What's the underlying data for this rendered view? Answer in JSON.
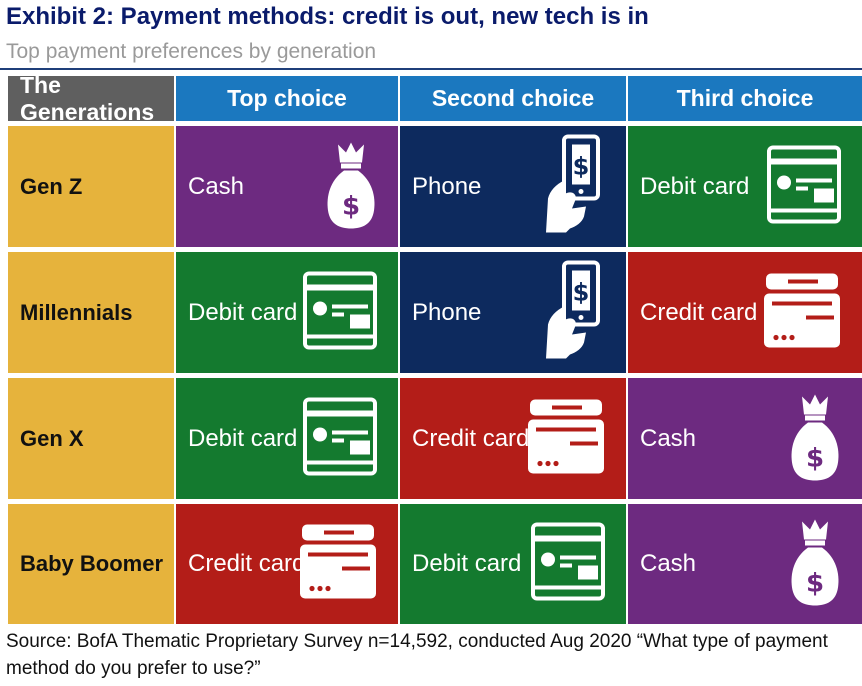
{
  "title": "Exhibit 2: Payment methods: credit is out, new tech is in",
  "subtitle": "Top payment preferences by generation",
  "chart_data": {
    "type": "table",
    "columns": [
      "The Generations",
      "Top choice",
      "Second choice",
      "Third choice"
    ],
    "rows": [
      {
        "generation": "Gen Z",
        "choices": [
          "Cash",
          "Phone",
          "Debit card"
        ]
      },
      {
        "generation": "Millennials",
        "choices": [
          "Debit card",
          "Phone",
          "Credit card"
        ]
      },
      {
        "generation": "Gen X",
        "choices": [
          "Debit card",
          "Credit card",
          "Cash"
        ]
      },
      {
        "generation": "Baby Boomer",
        "choices": [
          "Credit card",
          "Debit card",
          "Cash"
        ]
      }
    ]
  },
  "method_style": {
    "Cash": {
      "color": "#6d2a80",
      "icon": "money-bag-icon"
    },
    "Phone": {
      "color": "#0d2a5e",
      "icon": "phone-payment-icon"
    },
    "Debit card": {
      "color": "#147a2f",
      "icon": "debit-card-icon"
    },
    "Credit card": {
      "color": "#b31d18",
      "icon": "credit-card-icon"
    }
  },
  "source": "Source: BofA Thematic Proprietary Survey n=14,592, conducted Aug 2020 “What type of payment method do you prefer to use?”"
}
